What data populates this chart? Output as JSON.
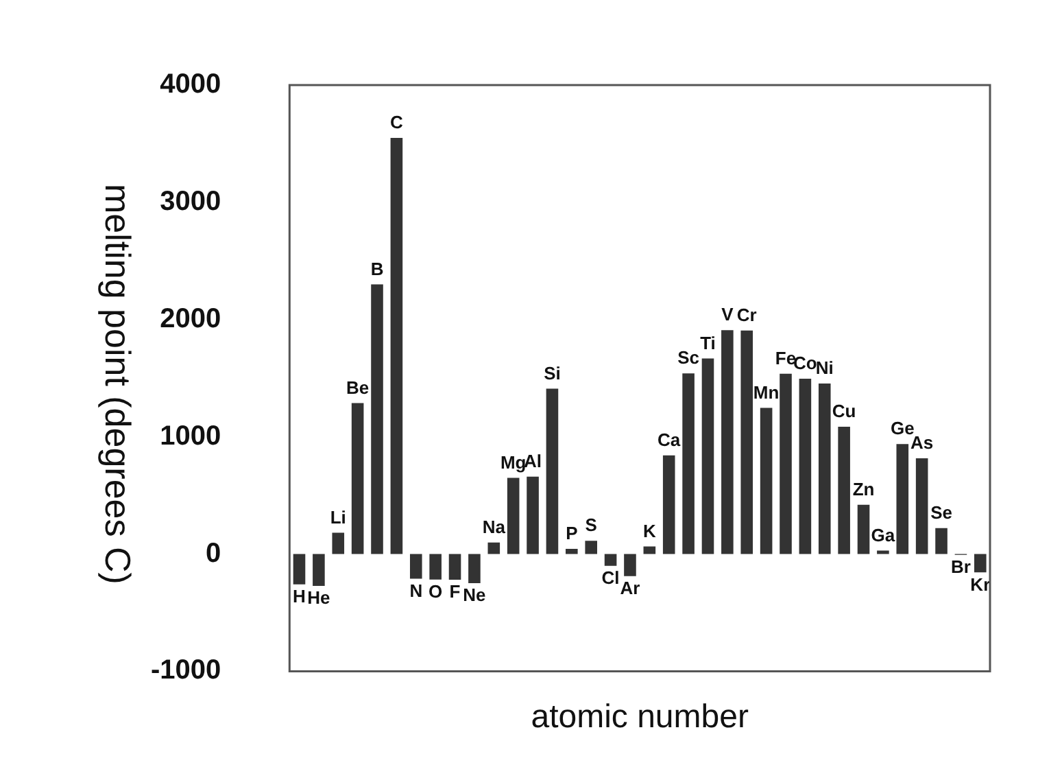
{
  "chart_data": {
    "type": "bar",
    "xlabel": "atomic number",
    "ylabel": "melting point (degrees C)",
    "categories": [
      "H",
      "He",
      "Li",
      "Be",
      "B",
      "C",
      "N",
      "O",
      "F",
      "Ne",
      "Na",
      "Mg",
      "Al",
      "Si",
      "P",
      "S",
      "Cl",
      "Ar",
      "K",
      "Ca",
      "Sc",
      "Ti",
      "V",
      "Cr",
      "Mn",
      "Fe",
      "Co",
      "Ni",
      "Cu",
      "Zn",
      "Ga",
      "Ge",
      "As",
      "Se",
      "Br",
      "Kr"
    ],
    "values": [
      -259,
      -272,
      181,
      1287,
      2300,
      3550,
      -210,
      -218,
      -220,
      -249,
      98,
      650,
      660,
      1410,
      44,
      113,
      -101,
      -189,
      64,
      842,
      1541,
      1668,
      1910,
      1907,
      1246,
      1538,
      1495,
      1455,
      1085,
      420,
      30,
      938,
      817,
      221,
      -7,
      -157
    ],
    "color": "#333333",
    "ylim": [
      -1000,
      4000
    ],
    "yticks": [
      -1000,
      0,
      1000,
      2000,
      3000,
      4000
    ],
    "tick_labels": "y",
    "grid": false,
    "legend": false
  }
}
